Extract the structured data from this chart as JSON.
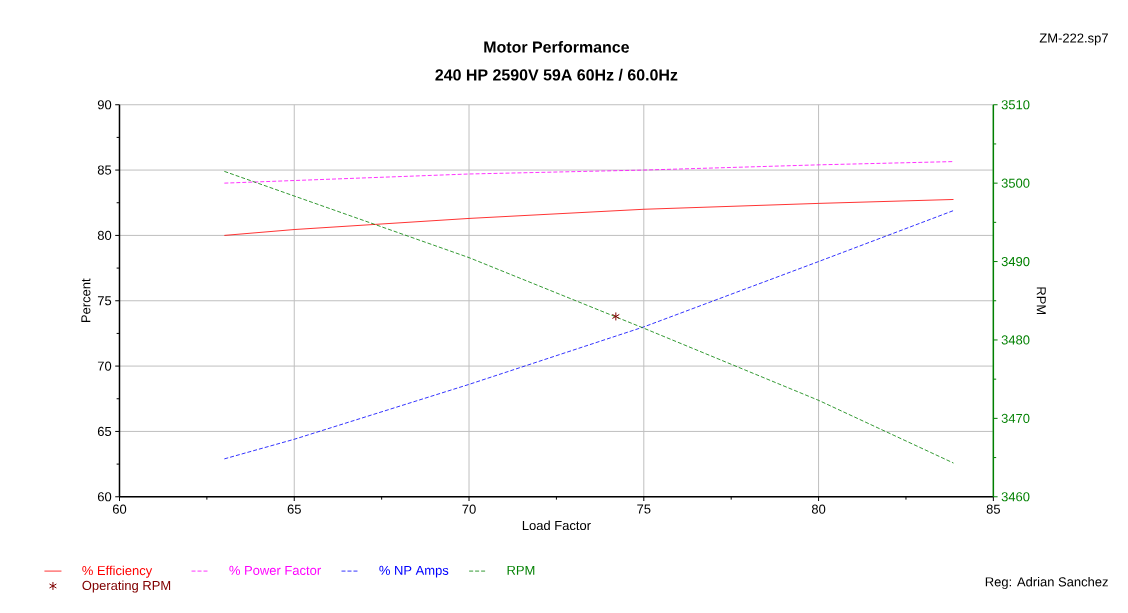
{
  "chart_data": {
    "type": "line",
    "title": "Motor Performance",
    "subtitle": "240 HP 2590V 59A 60Hz / 60.0Hz",
    "xlabel": "Load Factor",
    "ylabel": "Percent",
    "y2label": "RPM",
    "xlim": [
      60,
      85
    ],
    "xticks": [
      60,
      65,
      70,
      75,
      80,
      85
    ],
    "ylim": [
      60,
      90
    ],
    "yticks": [
      60,
      65,
      70,
      75,
      80,
      85,
      90
    ],
    "y2lim": [
      3460,
      3510
    ],
    "y2ticks": [
      3460,
      3470,
      3480,
      3490,
      3500,
      3510
    ],
    "grid": true,
    "legend": "bottom",
    "annotations": [
      "ZM-222.sp7",
      "Reg: Adrian Sanchez"
    ],
    "series": [
      {
        "name": "% Efficiency",
        "color": "#ff0000",
        "line_style": "solid",
        "x": [
          63,
          65,
          70,
          75,
          80,
          83.86
        ],
        "values": [
          80.0,
          80.45,
          81.3,
          82.0,
          82.45,
          82.75
        ]
      },
      {
        "name": "% Power Factor",
        "color": "#ff00ff",
        "line_style": "dashed",
        "x": [
          63,
          65,
          70,
          75,
          80,
          83.86
        ],
        "values": [
          84.0,
          84.2,
          84.7,
          85.0,
          85.4,
          85.65
        ]
      },
      {
        "name": "% NP Amps",
        "color": "#0000ff",
        "line_style": "dashed",
        "x": [
          63,
          65,
          70,
          75,
          80,
          83.86
        ],
        "values": [
          62.9,
          64.4,
          68.6,
          73.0,
          78.0,
          81.9
        ]
      },
      {
        "name": "RPM",
        "color": "#008000",
        "line_style": "dashed",
        "axis": "y2",
        "x": [
          63,
          70,
          75,
          80,
          83.86
        ],
        "values": [
          3501.5,
          3490.5,
          3481.5,
          3472.3,
          3464.3
        ]
      },
      {
        "name": "Operating RPM",
        "color": "#800000",
        "type": "scatter",
        "marker": "cross",
        "axis": "y2",
        "x": [
          74.2
        ],
        "values": [
          3483.0
        ]
      }
    ]
  }
}
